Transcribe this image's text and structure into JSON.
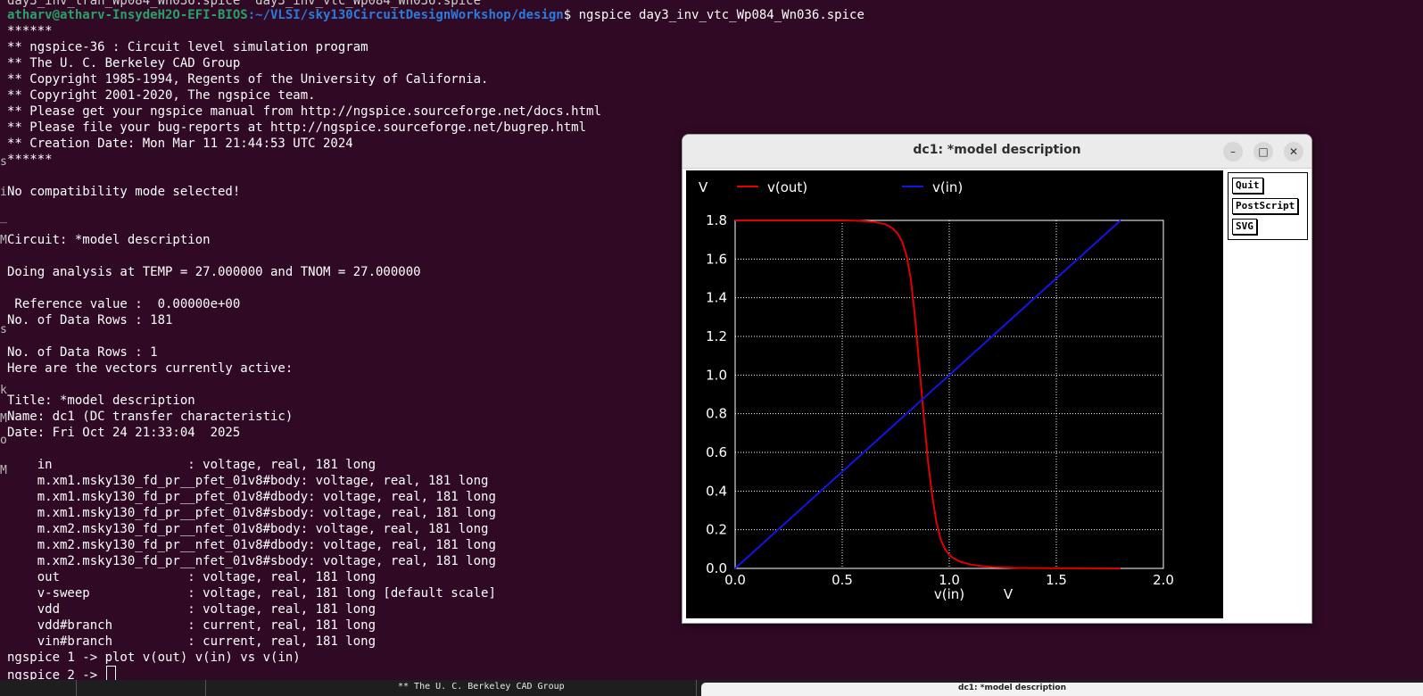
{
  "terminal": {
    "clipped_top": "day3_inv_tran_Wp084_Wn036.spice  day3_inv_vtc_Wp084_Wn036.spice",
    "prompt_user": "atharv@atharv-InsydeH2O-EFI-BIOS",
    "prompt_path": ":~/VLSI/sky130CircuitDesignWorkshop/design",
    "prompt_symbol": "$ ",
    "command": "ngspice day3_inv_vtc_Wp084_Wn036.spice",
    "lines": [
      "******",
      "** ngspice-36 : Circuit level simulation program",
      "** The U. C. Berkeley CAD Group",
      "** Copyright 1985-1994, Regents of the University of California.",
      "** Copyright 2001-2020, The ngspice team.",
      "** Please get your ngspice manual from http://ngspice.sourceforge.net/docs.html",
      "** Please file your bug-reports at http://ngspice.sourceforge.net/bugrep.html",
      "** Creation Date: Mon Mar 11 21:44:53 UTC 2024",
      "******",
      "",
      "No compatibility mode selected!",
      "",
      "",
      "Circuit: *model description",
      "",
      "Doing analysis at TEMP = 27.000000 and TNOM = 27.000000",
      "",
      " Reference value :  0.00000e+00",
      "No. of Data Rows : 181",
      "",
      "No. of Data Rows : 1",
      "Here are the vectors currently active:",
      "",
      "Title: *model description",
      "Name: dc1 (DC transfer characteristic)",
      "Date: Fri Oct 24 21:33:04  2025",
      "",
      "    in                  : voltage, real, 181 long",
      "    m.xm1.msky130_fd_pr__pfet_01v8#body: voltage, real, 181 long",
      "    m.xm1.msky130_fd_pr__pfet_01v8#dbody: voltage, real, 181 long",
      "    m.xm1.msky130_fd_pr__pfet_01v8#sbody: voltage, real, 181 long",
      "    m.xm2.msky130_fd_pr__nfet_01v8#body: voltage, real, 181 long",
      "    m.xm2.msky130_fd_pr__nfet_01v8#dbody: voltage, real, 181 long",
      "    m.xm2.msky130_fd_pr__nfet_01v8#sbody: voltage, real, 181 long",
      "    out                 : voltage, real, 181 long",
      "    v-sweep             : voltage, real, 181 long [default scale]",
      "    vdd                 : voltage, real, 181 long",
      "    vdd#branch          : current, real, 181 long",
      "    vin#branch          : current, real, 181 long",
      "ngspice 1 -> plot v(out) v(in) vs v(in)"
    ],
    "prompt2": "ngspice 2 -> ",
    "edge_chars": [
      "s",
      "i",
      "_",
      "M",
      "s",
      "k",
      "M",
      "ou",
      "M"
    ]
  },
  "bottom_strip": {
    "text": "** The U. C. Berkeley CAD Group",
    "mini_title": "dc1: *model description"
  },
  "window": {
    "title": "dc1: *model description",
    "minimize_icon": "–",
    "maximize_icon": "□",
    "close_icon": "✕"
  },
  "buttons": {
    "quit": "Quit",
    "postscript": "PostScript",
    "svg": "SVG"
  },
  "colors": {
    "terminal_bg": "#300a24",
    "plot_bg": "#000000",
    "grid": "#ffffff",
    "vout": "#e00000",
    "vin": "#1414e6"
  },
  "chart_data": {
    "type": "line",
    "ylabel_unit": "V",
    "xlabel": "v(in)",
    "xlabel_unit": "V",
    "xlim": [
      0,
      2.0
    ],
    "ylim": [
      0,
      1.8
    ],
    "xticks": [
      "0.0",
      "0.5",
      "1.0",
      "1.5",
      "2.0"
    ],
    "yticks": [
      "0.0",
      "0.2",
      "0.4",
      "0.6",
      "0.8",
      "1.0",
      "1.2",
      "1.4",
      "1.6",
      "1.8"
    ],
    "grid": true,
    "legend_position": "top",
    "series": [
      {
        "name": "v(out)",
        "color": "#e00000",
        "x": [
          0,
          0.2,
          0.4,
          0.5,
          0.55,
          0.6,
          0.65,
          0.7,
          0.72,
          0.74,
          0.76,
          0.78,
          0.8,
          0.82,
          0.84,
          0.86,
          0.88,
          0.9,
          0.92,
          0.94,
          0.96,
          0.98,
          1.0,
          1.02,
          1.05,
          1.1,
          1.15,
          1.2,
          1.3,
          1.5,
          1.8
        ],
        "y": [
          1.8,
          1.8,
          1.8,
          1.8,
          1.799,
          1.797,
          1.792,
          1.78,
          1.77,
          1.755,
          1.73,
          1.69,
          1.62,
          1.5,
          1.3,
          1.05,
          0.8,
          0.56,
          0.38,
          0.24,
          0.15,
          0.1,
          0.07,
          0.052,
          0.035,
          0.02,
          0.012,
          0.007,
          0.003,
          0.001,
          0.0
        ]
      },
      {
        "name": "v(in)",
        "color": "#1414e6",
        "x": [
          0,
          1.8
        ],
        "y": [
          0,
          1.8
        ]
      }
    ]
  }
}
